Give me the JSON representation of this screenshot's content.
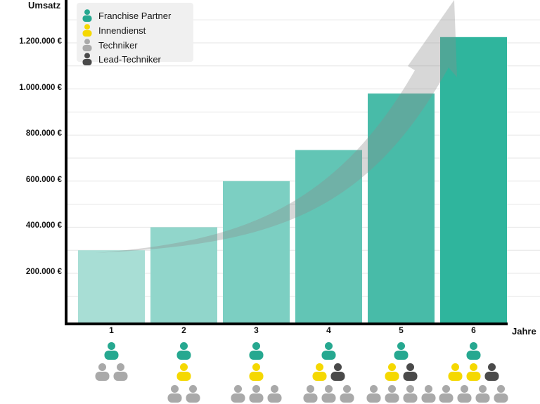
{
  "chart_data": {
    "type": "bar",
    "title": "",
    "ylabel": "Umsatz",
    "xlabel": "Jahre",
    "categories": [
      "1",
      "2",
      "3",
      "4",
      "5",
      "6"
    ],
    "values": [
      300000,
      400000,
      600000,
      735000,
      980000,
      1225000
    ],
    "ylim": [
      0,
      1400000
    ],
    "yticks": [
      {
        "value": 200000,
        "label": "200.000 €"
      },
      {
        "value": 400000,
        "label": "400.000 €"
      },
      {
        "value": 600000,
        "label": "600.000 €"
      },
      {
        "value": 800000,
        "label": "800.000 €"
      },
      {
        "value": 1000000,
        "label": "1.000.000 €"
      },
      {
        "value": 1200000,
        "label": "1.200.000 €"
      }
    ],
    "bar_colors": [
      "#a8ded5",
      "#91d6cb",
      "#7ccfc2",
      "#62c5b5",
      "#48bba8",
      "#2fb59d"
    ],
    "grid": true,
    "trend_arrow": true,
    "legend_position": "top-left",
    "legend": [
      {
        "label": "Franchise Partner",
        "role": "franchise",
        "color": "#26a890"
      },
      {
        "label": "Innendienst",
        "role": "innendienst",
        "color": "#f5d800"
      },
      {
        "label": "Techniker",
        "role": "techniker",
        "color": "#a9a9a9"
      },
      {
        "label": "Lead-Techniker",
        "role": "lead",
        "color": "#4a4a4a"
      }
    ],
    "team_per_year": [
      {
        "year": "1",
        "rows": [
          [
            "franchise"
          ],
          [
            "techniker",
            "techniker"
          ]
        ]
      },
      {
        "year": "2",
        "rows": [
          [
            "franchise"
          ],
          [
            "innendienst"
          ],
          [
            "techniker",
            "techniker"
          ]
        ]
      },
      {
        "year": "3",
        "rows": [
          [
            "franchise"
          ],
          [
            "innendienst"
          ],
          [
            "techniker",
            "techniker",
            "techniker"
          ]
        ]
      },
      {
        "year": "4",
        "rows": [
          [
            "franchise"
          ],
          [
            "innendienst",
            "lead"
          ],
          [
            "techniker",
            "techniker",
            "techniker"
          ]
        ]
      },
      {
        "year": "5",
        "rows": [
          [
            "franchise"
          ],
          [
            "innendienst",
            "lead"
          ],
          [
            "techniker",
            "techniker",
            "techniker",
            "techniker"
          ]
        ]
      },
      {
        "year": "6",
        "rows": [
          [
            "franchise"
          ],
          [
            "innendienst",
            "innendienst",
            "lead"
          ],
          [
            "techniker",
            "techniker",
            "techniker",
            "techniker"
          ]
        ]
      }
    ]
  }
}
